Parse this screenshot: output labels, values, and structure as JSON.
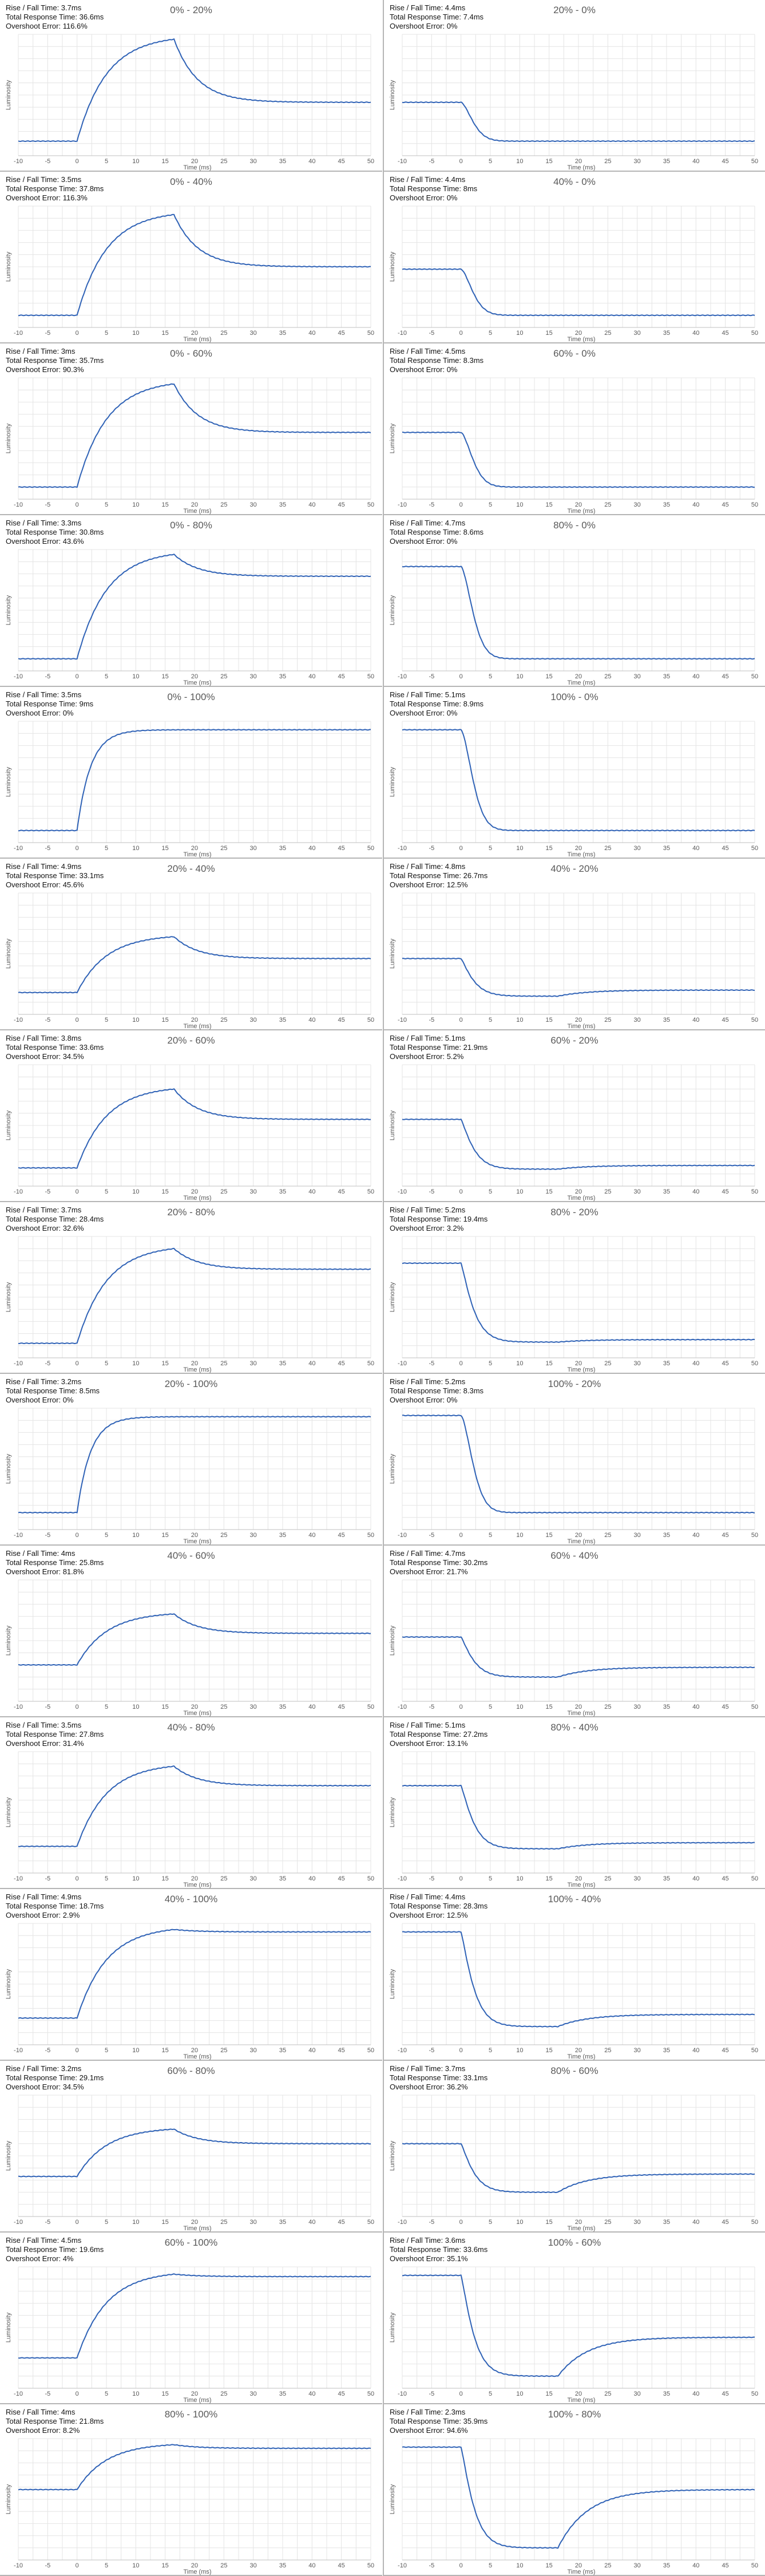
{
  "chart_data": [
    {
      "type": "line",
      "title": "0% - 20%",
      "rise_fall": "Rise / Fall Time: 3.7ms",
      "total": "Total Response Time: 36.6ms",
      "overshoot": "Overshoot Error: 116.6%",
      "xlabel": "Time (ms)",
      "ylabel": "Luminosity",
      "direction": "rise",
      "start": 0.12,
      "end": 0.44,
      "peak": 0.96,
      "peak_t": 16.5,
      "xlim": [
        -10,
        50
      ],
      "xticks": [
        -10,
        -5,
        0,
        5,
        10,
        15,
        20,
        25,
        30,
        35,
        40,
        45,
        50
      ]
    },
    {
      "type": "line",
      "title": "20% - 0%",
      "rise_fall": "Rise / Fall Time: 4.4ms",
      "total": "Total Response Time: 7.4ms",
      "overshoot": "Overshoot Error: 0%",
      "xlabel": "Time (ms)",
      "ylabel": "Luminosity",
      "direction": "fall",
      "start": 0.44,
      "end": 0.12,
      "peak": null,
      "peak_t": null,
      "xlim": [
        -10,
        50
      ],
      "xticks": [
        -10,
        -5,
        0,
        5,
        10,
        15,
        20,
        25,
        30,
        35,
        40,
        45,
        50
      ]
    },
    {
      "type": "line",
      "title": "0% - 40%",
      "rise_fall": "Rise / Fall Time: 3.5ms",
      "total": "Total Response Time: 37.8ms",
      "overshoot": "Overshoot Error: 116.3%",
      "xlabel": "Time (ms)",
      "ylabel": "Luminosity",
      "direction": "rise",
      "start": 0.1,
      "end": 0.5,
      "peak": 0.93,
      "peak_t": 16.5,
      "xlim": [
        -10,
        50
      ],
      "xticks": [
        -10,
        -5,
        0,
        5,
        10,
        15,
        20,
        25,
        30,
        35,
        40,
        45,
        50
      ]
    },
    {
      "type": "line",
      "title": "40% - 0%",
      "rise_fall": "Rise / Fall Time: 4.4ms",
      "total": "Total Response Time: 8ms",
      "overshoot": "Overshoot Error: 0%",
      "xlabel": "Time (ms)",
      "ylabel": "Luminosity",
      "direction": "fall",
      "start": 0.48,
      "end": 0.1,
      "peak": null,
      "peak_t": null,
      "xlim": [
        -10,
        50
      ],
      "xticks": [
        -10,
        -5,
        0,
        5,
        10,
        15,
        20,
        25,
        30,
        35,
        40,
        45,
        50
      ]
    },
    {
      "type": "line",
      "title": "0% - 60%",
      "rise_fall": "Rise / Fall Time: 3ms",
      "total": "Total Response Time: 35.7ms",
      "overshoot": "Overshoot Error: 90.3%",
      "xlabel": "Time (ms)",
      "ylabel": "Luminosity",
      "direction": "rise",
      "start": 0.1,
      "end": 0.55,
      "peak": 0.95,
      "peak_t": 16.5,
      "xlim": [
        -10,
        50
      ],
      "xticks": [
        -10,
        -5,
        0,
        5,
        10,
        15,
        20,
        25,
        30,
        35,
        40,
        45,
        50
      ]
    },
    {
      "type": "line",
      "title": "60% - 0%",
      "rise_fall": "Rise / Fall Time: 4.5ms",
      "total": "Total Response Time: 8.3ms",
      "overshoot": "Overshoot Error: 0%",
      "xlabel": "Time (ms)",
      "ylabel": "Luminosity",
      "direction": "fall",
      "start": 0.55,
      "end": 0.1,
      "peak": null,
      "peak_t": null,
      "xlim": [
        -10,
        50
      ],
      "xticks": [
        -10,
        -5,
        0,
        5,
        10,
        15,
        20,
        25,
        30,
        35,
        40,
        45,
        50
      ]
    },
    {
      "type": "line",
      "title": "0% - 80%",
      "rise_fall": "Rise / Fall Time: 3.3ms",
      "total": "Total Response Time: 30.8ms",
      "overshoot": "Overshoot Error: 43.6%",
      "xlabel": "Time (ms)",
      "ylabel": "Luminosity",
      "direction": "rise",
      "start": 0.1,
      "end": 0.78,
      "peak": 0.96,
      "peak_t": 16.5,
      "xlim": [
        -10,
        50
      ],
      "xticks": [
        -10,
        -5,
        0,
        5,
        10,
        15,
        20,
        25,
        30,
        35,
        40,
        45,
        50
      ]
    },
    {
      "type": "line",
      "title": "80% - 0%",
      "rise_fall": "Rise / Fall Time: 4.7ms",
      "total": "Total Response Time: 8.6ms",
      "overshoot": "Overshoot Error: 0%",
      "xlabel": "Time (ms)",
      "ylabel": "Luminosity",
      "direction": "fall",
      "start": 0.86,
      "end": 0.1,
      "peak": null,
      "peak_t": null,
      "xlim": [
        -10,
        50
      ],
      "xticks": [
        -10,
        -5,
        0,
        5,
        10,
        15,
        20,
        25,
        30,
        35,
        40,
        45,
        50
      ]
    },
    {
      "type": "line",
      "title": "0% - 100%",
      "rise_fall": "Rise / Fall Time: 3.5ms",
      "total": "Total Response Time: 9ms",
      "overshoot": "Overshoot Error: 0%",
      "xlabel": "Time (ms)",
      "ylabel": "Luminosity",
      "direction": "rise",
      "start": 0.1,
      "end": 0.93,
      "peak": null,
      "peak_t": null,
      "xlim": [
        -10,
        50
      ],
      "xticks": [
        -10,
        -5,
        0,
        5,
        10,
        15,
        20,
        25,
        30,
        35,
        40,
        45,
        50
      ]
    },
    {
      "type": "line",
      "title": "100% - 0%",
      "rise_fall": "Rise / Fall Time: 5.1ms",
      "total": "Total Response Time: 8.9ms",
      "overshoot": "Overshoot Error: 0%",
      "xlabel": "Time (ms)",
      "ylabel": "Luminosity",
      "direction": "fall",
      "start": 0.93,
      "end": 0.1,
      "peak": null,
      "peak_t": null,
      "xlim": [
        -10,
        50
      ],
      "xticks": [
        -10,
        -5,
        0,
        5,
        10,
        15,
        20,
        25,
        30,
        35,
        40,
        45,
        50
      ]
    },
    {
      "type": "line",
      "title": "20% - 40%",
      "rise_fall": "Rise / Fall Time: 4.9ms",
      "total": "Total Response Time: 33.1ms",
      "overshoot": "Overshoot Error: 45.6%",
      "xlabel": "Time (ms)",
      "ylabel": "Luminosity",
      "direction": "rise",
      "start": 0.18,
      "end": 0.46,
      "peak": 0.64,
      "peak_t": 16.5,
      "xlim": [
        -10,
        50
      ],
      "xticks": [
        -10,
        -5,
        0,
        5,
        10,
        15,
        20,
        25,
        30,
        35,
        40,
        45,
        50
      ]
    },
    {
      "type": "line",
      "title": "40% - 20%",
      "rise_fall": "Rise / Fall Time: 4.8ms",
      "total": "Total Response Time: 26.7ms",
      "overshoot": "Overshoot Error: 12.5%",
      "xlabel": "Time (ms)",
      "ylabel": "Luminosity",
      "direction": "fall",
      "start": 0.46,
      "end": 0.2,
      "peak": 0.15,
      "peak_t": 16.5,
      "xlim": [
        -10,
        50
      ],
      "xticks": [
        -10,
        -5,
        0,
        5,
        10,
        15,
        20,
        25,
        30,
        35,
        40,
        45,
        50
      ]
    },
    {
      "type": "line",
      "title": "20% - 60%",
      "rise_fall": "Rise / Fall Time: 3.8ms",
      "total": "Total Response Time: 33.6ms",
      "overshoot": "Overshoot Error: 34.5%",
      "xlabel": "Time (ms)",
      "ylabel": "Luminosity",
      "direction": "rise",
      "start": 0.15,
      "end": 0.55,
      "peak": 0.8,
      "peak_t": 16.5,
      "xlim": [
        -10,
        50
      ],
      "xticks": [
        -10,
        -5,
        0,
        5,
        10,
        15,
        20,
        25,
        30,
        35,
        40,
        45,
        50
      ]
    },
    {
      "type": "line",
      "title": "60% - 20%",
      "rise_fall": "Rise / Fall Time: 5.1ms",
      "total": "Total Response Time: 21.9ms",
      "overshoot": "Overshoot Error: 5.2%",
      "xlabel": "Time (ms)",
      "ylabel": "Luminosity",
      "direction": "fall",
      "start": 0.55,
      "end": 0.17,
      "peak": 0.14,
      "peak_t": 16.5,
      "xlim": [
        -10,
        50
      ],
      "xticks": [
        -10,
        -5,
        0,
        5,
        10,
        15,
        20,
        25,
        30,
        35,
        40,
        45,
        50
      ]
    },
    {
      "type": "line",
      "title": "20% - 80%",
      "rise_fall": "Rise / Fall Time: 3.7ms",
      "total": "Total Response Time: 28.4ms",
      "overshoot": "Overshoot Error: 32.6%",
      "xlabel": "Time (ms)",
      "ylabel": "Luminosity",
      "direction": "rise",
      "start": 0.12,
      "end": 0.73,
      "peak": 0.9,
      "peak_t": 16.5,
      "xlim": [
        -10,
        50
      ],
      "xticks": [
        -10,
        -5,
        0,
        5,
        10,
        15,
        20,
        25,
        30,
        35,
        40,
        45,
        50
      ]
    },
    {
      "type": "line",
      "title": "80% - 20%",
      "rise_fall": "Rise / Fall Time: 5.2ms",
      "total": "Total Response Time: 19.4ms",
      "overshoot": "Overshoot Error: 3.2%",
      "xlabel": "Time (ms)",
      "ylabel": "Luminosity",
      "direction": "fall",
      "start": 0.78,
      "end": 0.15,
      "peak": 0.13,
      "peak_t": 16.5,
      "xlim": [
        -10,
        50
      ],
      "xticks": [
        -10,
        -5,
        0,
        5,
        10,
        15,
        20,
        25,
        30,
        35,
        40,
        45,
        50
      ]
    },
    {
      "type": "line",
      "title": "20% - 100%",
      "rise_fall": "Rise / Fall Time: 3.2ms",
      "total": "Total Response Time: 8.5ms",
      "overshoot": "Overshoot Error: 0%",
      "xlabel": "Time (ms)",
      "ylabel": "Luminosity",
      "direction": "rise",
      "start": 0.14,
      "end": 0.93,
      "peak": null,
      "peak_t": null,
      "xlim": [
        -10,
        50
      ],
      "xticks": [
        -10,
        -5,
        0,
        5,
        10,
        15,
        20,
        25,
        30,
        35,
        40,
        45,
        50
      ]
    },
    {
      "type": "line",
      "title": "100% - 20%",
      "rise_fall": "Rise / Fall Time: 5.2ms",
      "total": "Total Response Time: 8.3ms",
      "overshoot": "Overshoot Error: 0%",
      "xlabel": "Time (ms)",
      "ylabel": "Luminosity",
      "direction": "fall",
      "start": 0.94,
      "end": 0.14,
      "peak": null,
      "peak_t": null,
      "xlim": [
        -10,
        50
      ],
      "xticks": [
        -10,
        -5,
        0,
        5,
        10,
        15,
        20,
        25,
        30,
        35,
        40,
        45,
        50
      ]
    },
    {
      "type": "line",
      "title": "40% - 60%",
      "rise_fall": "Rise / Fall Time: 4ms",
      "total": "Total Response Time: 25.8ms",
      "overshoot": "Overshoot Error: 81.8%",
      "xlabel": "Time (ms)",
      "ylabel": "Luminosity",
      "direction": "rise",
      "start": 0.3,
      "end": 0.56,
      "peak": 0.72,
      "peak_t": 16.5,
      "xlim": [
        -10,
        50
      ],
      "xticks": [
        -10,
        -5,
        0,
        5,
        10,
        15,
        20,
        25,
        30,
        35,
        40,
        45,
        50
      ]
    },
    {
      "type": "line",
      "title": "60% - 40%",
      "rise_fall": "Rise / Fall Time: 4.7ms",
      "total": "Total Response Time: 30.2ms",
      "overshoot": "Overshoot Error: 21.7%",
      "xlabel": "Time (ms)",
      "ylabel": "Luminosity",
      "direction": "fall",
      "start": 0.53,
      "end": 0.28,
      "peak": 0.2,
      "peak_t": 16.5,
      "xlim": [
        -10,
        50
      ],
      "xticks": [
        -10,
        -5,
        0,
        5,
        10,
        15,
        20,
        25,
        30,
        35,
        40,
        45,
        50
      ]
    },
    {
      "type": "line",
      "title": "40% - 80%",
      "rise_fall": "Rise / Fall Time: 3.5ms",
      "total": "Total Response Time: 27.8ms",
      "overshoot": "Overshoot Error: 31.4%",
      "xlabel": "Time (ms)",
      "ylabel": "Luminosity",
      "direction": "rise",
      "start": 0.22,
      "end": 0.72,
      "peak": 0.88,
      "peak_t": 16.5,
      "xlim": [
        -10,
        50
      ],
      "xticks": [
        -10,
        -5,
        0,
        5,
        10,
        15,
        20,
        25,
        30,
        35,
        40,
        45,
        50
      ]
    },
    {
      "type": "line",
      "title": "80% - 40%",
      "rise_fall": "Rise / Fall Time: 5.1ms",
      "total": "Total Response Time: 27.2ms",
      "overshoot": "Overshoot Error: 13.1%",
      "xlabel": "Time (ms)",
      "ylabel": "Luminosity",
      "direction": "fall",
      "start": 0.72,
      "end": 0.25,
      "peak": 0.2,
      "peak_t": 16.5,
      "xlim": [
        -10,
        50
      ],
      "xticks": [
        -10,
        -5,
        0,
        5,
        10,
        15,
        20,
        25,
        30,
        35,
        40,
        45,
        50
      ]
    },
    {
      "type": "line",
      "title": "40% - 100%",
      "rise_fall": "Rise / Fall Time: 4.9ms",
      "total": "Total Response Time: 18.7ms",
      "overshoot": "Overshoot Error: 2.9%",
      "xlabel": "Time (ms)",
      "ylabel": "Luminosity",
      "direction": "rise",
      "start": 0.22,
      "end": 0.93,
      "peak": 0.95,
      "peak_t": 16.5,
      "xlim": [
        -10,
        50
      ],
      "xticks": [
        -10,
        -5,
        0,
        5,
        10,
        15,
        20,
        25,
        30,
        35,
        40,
        45,
        50
      ]
    },
    {
      "type": "line",
      "title": "100% - 40%",
      "rise_fall": "Rise / Fall Time: 4.4ms",
      "total": "Total Response Time: 28.3ms",
      "overshoot": "Overshoot Error: 12.5%",
      "xlabel": "Time (ms)",
      "ylabel": "Luminosity",
      "direction": "fall",
      "start": 0.93,
      "end": 0.25,
      "peak": 0.15,
      "peak_t": 16.5,
      "xlim": [
        -10,
        50
      ],
      "xticks": [
        -10,
        -5,
        0,
        5,
        10,
        15,
        20,
        25,
        30,
        35,
        40,
        45,
        50
      ]
    },
    {
      "type": "line",
      "title": "60% - 80%",
      "rise_fall": "Rise / Fall Time: 3.2ms",
      "total": "Total Response Time: 29.1ms",
      "overshoot": "Overshoot Error: 34.5%",
      "xlabel": "Time (ms)",
      "ylabel": "Luminosity",
      "direction": "rise",
      "start": 0.33,
      "end": 0.6,
      "peak": 0.72,
      "peak_t": 16.5,
      "xlim": [
        -10,
        50
      ],
      "xticks": [
        -10,
        -5,
        0,
        5,
        10,
        15,
        20,
        25,
        30,
        35,
        40,
        45,
        50
      ]
    },
    {
      "type": "line",
      "title": "80% - 60%",
      "rise_fall": "Rise / Fall Time: 3.7ms",
      "total": "Total Response Time: 33.1ms",
      "overshoot": "Overshoot Error: 36.2%",
      "xlabel": "Time (ms)",
      "ylabel": "Luminosity",
      "direction": "fall",
      "start": 0.6,
      "end": 0.35,
      "peak": 0.2,
      "peak_t": 16.5,
      "xlim": [
        -10,
        50
      ],
      "xticks": [
        -10,
        -5,
        0,
        5,
        10,
        15,
        20,
        25,
        30,
        35,
        40,
        45,
        50
      ]
    },
    {
      "type": "line",
      "title": "60% - 100%",
      "rise_fall": "Rise / Fall Time: 4.5ms",
      "total": "Total Response Time: 19.6ms",
      "overshoot": "Overshoot Error: 4%",
      "xlabel": "Time (ms)",
      "ylabel": "Luminosity",
      "direction": "rise",
      "start": 0.25,
      "end": 0.92,
      "peak": 0.94,
      "peak_t": 16.5,
      "xlim": [
        -10,
        50
      ],
      "xticks": [
        -10,
        -5,
        0,
        5,
        10,
        15,
        20,
        25,
        30,
        35,
        40,
        45,
        50
      ]
    },
    {
      "type": "line",
      "title": "100% - 60%",
      "rise_fall": "Rise / Fall Time: 3.6ms",
      "total": "Total Response Time: 33.6ms",
      "overshoot": "Overshoot Error: 35.1%",
      "xlabel": "Time (ms)",
      "ylabel": "Luminosity",
      "direction": "fall",
      "start": 0.93,
      "end": 0.42,
      "peak": 0.1,
      "peak_t": 16.5,
      "xlim": [
        -10,
        50
      ],
      "xticks": [
        -10,
        -5,
        0,
        5,
        10,
        15,
        20,
        25,
        30,
        35,
        40,
        45,
        50
      ]
    },
    {
      "type": "line",
      "title": "80% - 100%",
      "rise_fall": "Rise / Fall Time: 4ms",
      "total": "Total Response Time: 21.8ms",
      "overshoot": "Overshoot Error: 8.2%",
      "xlabel": "Time (ms)",
      "ylabel": "Luminosity",
      "direction": "rise",
      "start": 0.58,
      "end": 0.92,
      "peak": 0.95,
      "peak_t": 16.5,
      "xlim": [
        -10,
        50
      ],
      "xticks": [
        -10,
        -5,
        0,
        5,
        10,
        15,
        20,
        25,
        30,
        35,
        40,
        45,
        50
      ]
    },
    {
      "type": "line",
      "title": "100% - 80%",
      "rise_fall": "Rise / Fall Time: 2.3ms",
      "total": "Total Response Time: 35.9ms",
      "overshoot": "Overshoot Error: 94.6%",
      "xlabel": "Time (ms)",
      "ylabel": "Luminosity",
      "direction": "fall",
      "start": 0.93,
      "end": 0.58,
      "peak": 0.1,
      "peak_t": 16.5,
      "xlim": [
        -10,
        50
      ],
      "xticks": [
        -10,
        -5,
        0,
        5,
        10,
        15,
        20,
        25,
        30,
        35,
        40,
        45,
        50
      ]
    }
  ],
  "style": {
    "line_color": "#2f62b6",
    "grid_color": "#e4e4e4",
    "axis_color": "#bfbfbf",
    "divider_color": "#b5b5b5"
  }
}
